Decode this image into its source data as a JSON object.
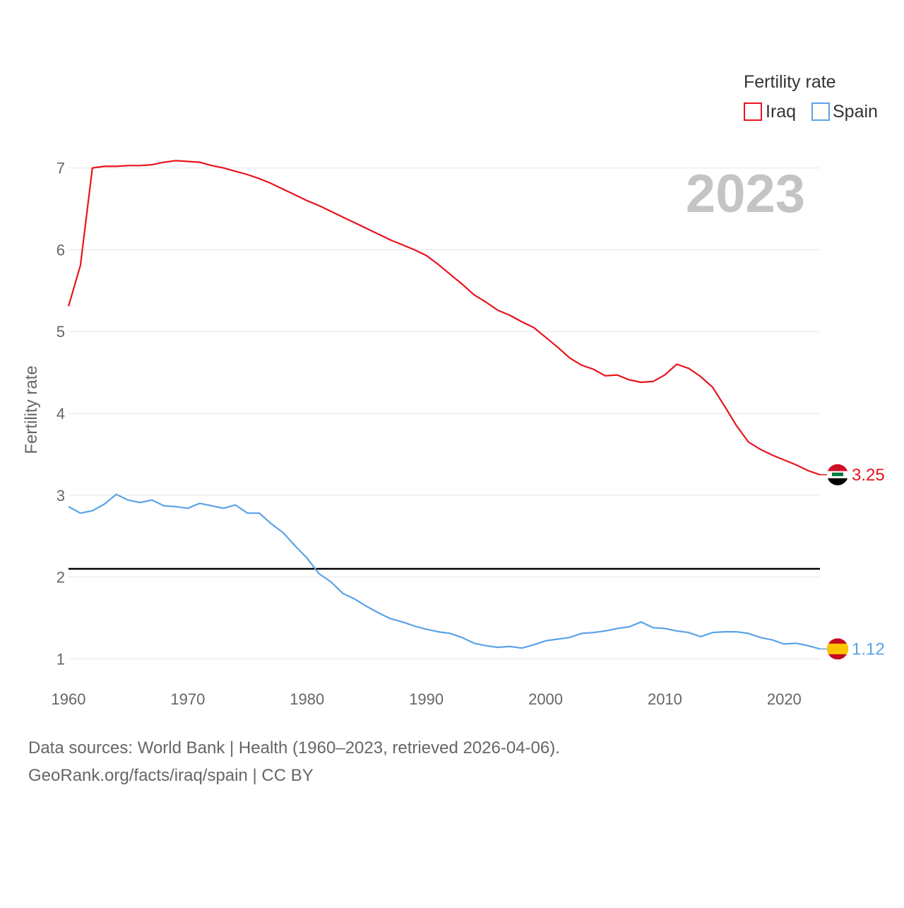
{
  "chart_data": {
    "type": "line",
    "title": "",
    "year_label": "2023",
    "xlabel": "",
    "ylabel": "Fertility rate",
    "xlim": [
      1960,
      2023
    ],
    "ylim": [
      0.7,
      7.3
    ],
    "x_ticks": [
      1960,
      1970,
      1980,
      1990,
      2000,
      2010,
      2020
    ],
    "y_ticks": [
      1,
      2,
      3,
      4,
      5,
      6,
      7
    ],
    "legend_title": "Fertility rate",
    "legend_position": "top-right",
    "reference_line": {
      "y": 2.1,
      "color": "#000000"
    },
    "x": [
      1960,
      1961,
      1962,
      1963,
      1964,
      1965,
      1966,
      1967,
      1968,
      1969,
      1970,
      1971,
      1972,
      1973,
      1974,
      1975,
      1976,
      1977,
      1978,
      1979,
      1980,
      1981,
      1982,
      1983,
      1984,
      1985,
      1986,
      1987,
      1988,
      1989,
      1990,
      1991,
      1992,
      1993,
      1994,
      1995,
      1996,
      1997,
      1998,
      1999,
      2000,
      2001,
      2002,
      2003,
      2004,
      2005,
      2006,
      2007,
      2008,
      2009,
      2010,
      2011,
      2012,
      2013,
      2014,
      2015,
      2016,
      2017,
      2018,
      2019,
      2020,
      2021,
      2022,
      2023
    ],
    "series": [
      {
        "name": "Iraq",
        "color": "#e8141c",
        "end_label": "3.25",
        "flag": "iraq-flag",
        "values": [
          5.31,
          5.81,
          7.0,
          7.02,
          7.02,
          7.03,
          7.03,
          7.04,
          7.07,
          7.09,
          7.08,
          7.07,
          7.03,
          7.0,
          6.96,
          6.92,
          6.87,
          6.81,
          6.74,
          6.67,
          6.6,
          6.54,
          6.47,
          6.4,
          6.33,
          6.26,
          6.19,
          6.12,
          6.06,
          6.0,
          5.93,
          5.82,
          5.7,
          5.58,
          5.45,
          5.36,
          5.26,
          5.2,
          5.12,
          5.05,
          4.93,
          4.81,
          4.68,
          4.59,
          4.54,
          4.46,
          4.47,
          4.41,
          4.38,
          4.39,
          4.47,
          4.6,
          4.55,
          4.45,
          4.32,
          4.09,
          3.85,
          3.65,
          3.56,
          3.49,
          3.43,
          3.37,
          3.3,
          3.25
        ]
      },
      {
        "name": "Spain",
        "color": "#5ba3e6",
        "end_label": "1.12",
        "flag": "spain-flag",
        "values": [
          2.86,
          2.78,
          2.81,
          2.89,
          3.01,
          2.94,
          2.91,
          2.94,
          2.87,
          2.86,
          2.84,
          2.9,
          2.87,
          2.84,
          2.88,
          2.78,
          2.78,
          2.65,
          2.54,
          2.38,
          2.23,
          2.04,
          1.94,
          1.8,
          1.73,
          1.64,
          1.56,
          1.49,
          1.45,
          1.4,
          1.36,
          1.33,
          1.31,
          1.26,
          1.19,
          1.16,
          1.14,
          1.15,
          1.13,
          1.17,
          1.22,
          1.24,
          1.26,
          1.31,
          1.32,
          1.34,
          1.37,
          1.39,
          1.45,
          1.38,
          1.37,
          1.34,
          1.32,
          1.27,
          1.32,
          1.33,
          1.33,
          1.31,
          1.26,
          1.23,
          1.18,
          1.19,
          1.16,
          1.12
        ]
      }
    ]
  },
  "footer": {
    "line1": "Data sources: World Bank | Health (1960–2023, retrieved 2026-04-06).",
    "line2": "GeoRank.org/facts/iraq/spain | CC BY"
  }
}
